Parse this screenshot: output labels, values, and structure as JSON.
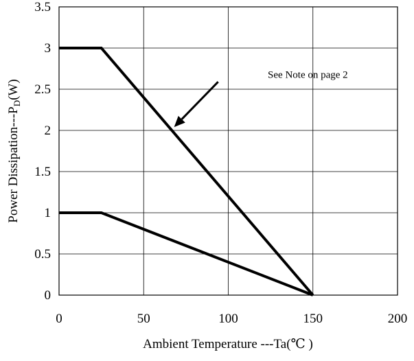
{
  "chart_data": {
    "type": "line",
    "title": "",
    "xlabel": "Ambient Temperature ---Ta(℃ )",
    "ylabel_main": "Power Dissipation---P",
    "ylabel_sub": "D",
    "ylabel_tail": "(W)",
    "xlim": [
      0,
      200
    ],
    "ylim": [
      0,
      3.5
    ],
    "x_ticks": [
      0,
      50,
      100,
      150,
      200
    ],
    "x_tick_labels": [
      "0",
      "50",
      "100",
      "150",
      "200"
    ],
    "y_ticks": [
      0,
      0.5,
      1,
      1.5,
      2,
      2.5,
      3,
      3.5
    ],
    "y_tick_labels": [
      "0",
      "0.5",
      "1",
      "1.5",
      "2",
      "2.5",
      "3",
      "3.5"
    ],
    "grid": true,
    "series": [
      {
        "points": [
          [
            0,
            3
          ],
          [
            25,
            3
          ],
          [
            150,
            0
          ]
        ]
      },
      {
        "points": [
          [
            0,
            1
          ],
          [
            25,
            1
          ],
          [
            150,
            0
          ]
        ]
      }
    ],
    "annotations": [
      {
        "text": "See Note  on page 2",
        "text_at": [
          147,
          2.68
        ],
        "arrow_from": [
          94,
          2.59
        ],
        "arrow_to": [
          68,
          2.04
        ]
      }
    ]
  }
}
